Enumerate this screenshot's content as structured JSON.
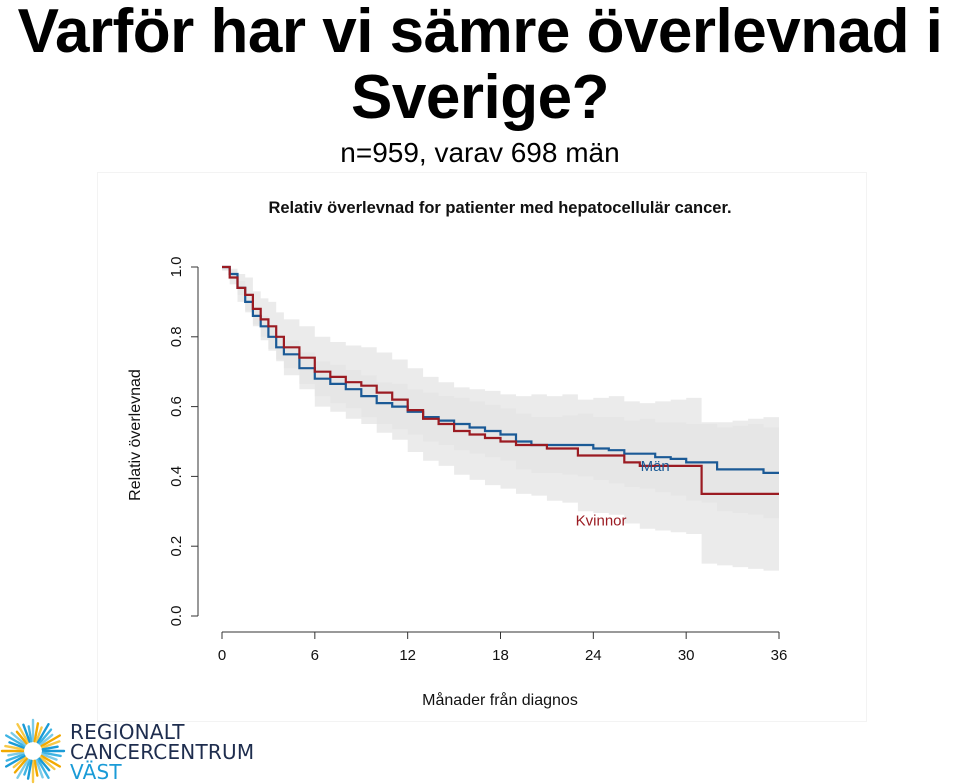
{
  "slide": {
    "title_line1": "Varför har vi sämre överlevnad i",
    "title_line2": "Sverige?",
    "subtitle": "n=959, varav 698 män"
  },
  "logo": {
    "line1": "REGIONALT",
    "line2": "CANCERCENTRUM",
    "line3": "VÄST",
    "colors": {
      "dark": "#1e2d4e",
      "accent": "#1a9bd7"
    }
  },
  "chart_data": {
    "type": "line",
    "title": "Relativ överlevnad for patienter med hepatocellulär cancer.",
    "xlabel": "Månader från diagnos",
    "ylabel": "Relativ överlevnad",
    "xlim": [
      0,
      36
    ],
    "ylim": [
      0,
      1
    ],
    "xticks": [
      "0",
      "6",
      "12",
      "18",
      "24",
      "30",
      "36"
    ],
    "yticks": [
      "0.0",
      "0.2",
      "0.4",
      "0.6",
      "0.8",
      "1.0"
    ],
    "grid": false,
    "series": [
      {
        "name": "Män",
        "color": "#1b5a96",
        "band_color": "#e4e4e4",
        "x": [
          0,
          0.5,
          1,
          1.5,
          2,
          2.5,
          3,
          3.5,
          4,
          5,
          6,
          7,
          8,
          9,
          10,
          11,
          12,
          13,
          14,
          15,
          16,
          17,
          18,
          19,
          20,
          21,
          22,
          23,
          24,
          25,
          26,
          27,
          28,
          29,
          30,
          31,
          32,
          33,
          34,
          35,
          36
        ],
        "y": [
          1.0,
          0.98,
          0.94,
          0.9,
          0.86,
          0.83,
          0.8,
          0.77,
          0.75,
          0.71,
          0.68,
          0.665,
          0.65,
          0.63,
          0.61,
          0.6,
          0.585,
          0.57,
          0.56,
          0.55,
          0.54,
          0.53,
          0.52,
          0.5,
          0.49,
          0.49,
          0.49,
          0.49,
          0.48,
          0.475,
          0.465,
          0.465,
          0.455,
          0.45,
          0.44,
          0.44,
          0.42,
          0.42,
          0.42,
          0.41,
          0.41
        ],
        "ci_lower": [
          0.99,
          0.965,
          0.92,
          0.875,
          0.835,
          0.8,
          0.765,
          0.735,
          0.71,
          0.665,
          0.63,
          0.61,
          0.595,
          0.57,
          0.55,
          0.535,
          0.52,
          0.5,
          0.49,
          0.475,
          0.465,
          0.455,
          0.445,
          0.42,
          0.41,
          0.41,
          0.405,
          0.4,
          0.39,
          0.38,
          0.37,
          0.365,
          0.355,
          0.345,
          0.33,
          0.325,
          0.3,
          0.295,
          0.29,
          0.28,
          0.27
        ],
        "ci_upper": [
          1.0,
          0.995,
          0.96,
          0.925,
          0.885,
          0.86,
          0.835,
          0.805,
          0.79,
          0.755,
          0.73,
          0.72,
          0.705,
          0.69,
          0.67,
          0.665,
          0.65,
          0.64,
          0.63,
          0.625,
          0.615,
          0.605,
          0.595,
          0.58,
          0.57,
          0.57,
          0.575,
          0.58,
          0.57,
          0.57,
          0.56,
          0.565,
          0.555,
          0.555,
          0.55,
          0.555,
          0.54,
          0.545,
          0.55,
          0.54,
          0.55
        ]
      },
      {
        "name": "Kvinnor",
        "color": "#9b1b22",
        "band_color": "#e4e4e4",
        "x": [
          0,
          0.5,
          1,
          1.5,
          2,
          2.5,
          3,
          3.5,
          4,
          5,
          6,
          7,
          8,
          9,
          10,
          11,
          12,
          13,
          14,
          15,
          16,
          17,
          18,
          19,
          20,
          21,
          22,
          23,
          24,
          25,
          26,
          27,
          28,
          29,
          30,
          31,
          32,
          33,
          34,
          35,
          36
        ],
        "y": [
          1.0,
          0.97,
          0.94,
          0.92,
          0.88,
          0.85,
          0.83,
          0.8,
          0.77,
          0.74,
          0.7,
          0.685,
          0.67,
          0.66,
          0.64,
          0.62,
          0.59,
          0.565,
          0.55,
          0.53,
          0.52,
          0.51,
          0.5,
          0.49,
          0.49,
          0.48,
          0.48,
          0.46,
          0.46,
          0.46,
          0.44,
          0.43,
          0.43,
          0.43,
          0.43,
          0.35,
          0.35,
          0.35,
          0.35,
          0.35,
          0.35
        ],
        "ci_lower": [
          0.99,
          0.95,
          0.9,
          0.87,
          0.83,
          0.79,
          0.76,
          0.73,
          0.69,
          0.65,
          0.6,
          0.585,
          0.565,
          0.55,
          0.525,
          0.505,
          0.47,
          0.445,
          0.43,
          0.405,
          0.39,
          0.375,
          0.365,
          0.35,
          0.345,
          0.33,
          0.325,
          0.3,
          0.295,
          0.29,
          0.265,
          0.25,
          0.245,
          0.24,
          0.235,
          0.15,
          0.145,
          0.14,
          0.135,
          0.13,
          0.125
        ],
        "ci_upper": [
          1.0,
          0.99,
          0.98,
          0.97,
          0.93,
          0.91,
          0.9,
          0.87,
          0.85,
          0.83,
          0.8,
          0.785,
          0.775,
          0.77,
          0.755,
          0.735,
          0.71,
          0.685,
          0.67,
          0.655,
          0.65,
          0.645,
          0.635,
          0.63,
          0.635,
          0.63,
          0.635,
          0.62,
          0.625,
          0.63,
          0.615,
          0.61,
          0.615,
          0.62,
          0.625,
          0.55,
          0.555,
          0.56,
          0.565,
          0.57,
          0.575
        ]
      }
    ],
    "annotations": [
      {
        "text": "Män",
        "x": 28,
        "y": 0.415,
        "color": "#1b5a96"
      },
      {
        "text": "Kvinnor",
        "x": 24.5,
        "y": 0.26,
        "color": "#9b1b22"
      }
    ]
  }
}
